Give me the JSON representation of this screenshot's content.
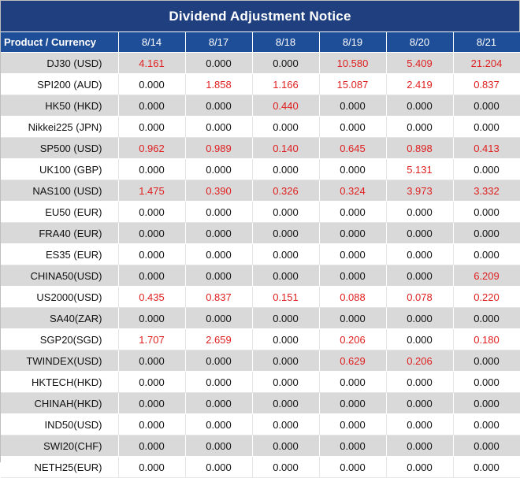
{
  "title": "Dividend Adjustment Notice",
  "header": {
    "product_label": "Product / Currency",
    "dates": [
      "8/14",
      "8/17",
      "8/18",
      "8/19",
      "8/20",
      "8/21"
    ]
  },
  "colors": {
    "title_bg": "#1f3f7f",
    "header_bg": "#1f4e99",
    "shade": "#d9d9d9",
    "nonzero": "#e02020"
  },
  "rows": [
    {
      "product": "DJ30 (USD)",
      "values": [
        "4.161",
        "0.000",
        "0.000",
        "10.580",
        "5.409",
        "21.204"
      ]
    },
    {
      "product": "SPI200 (AUD)",
      "values": [
        "0.000",
        "1.858",
        "1.166",
        "15.087",
        "2.419",
        "0.837"
      ]
    },
    {
      "product": "HK50 (HKD)",
      "values": [
        "0.000",
        "0.000",
        "0.440",
        "0.000",
        "0.000",
        "0.000"
      ]
    },
    {
      "product": "Nikkei225 (JPN)",
      "values": [
        "0.000",
        "0.000",
        "0.000",
        "0.000",
        "0.000",
        "0.000"
      ]
    },
    {
      "product": "SP500 (USD)",
      "values": [
        "0.962",
        "0.989",
        "0.140",
        "0.645",
        "0.898",
        "0.413"
      ]
    },
    {
      "product": "UK100 (GBP)",
      "values": [
        "0.000",
        "0.000",
        "0.000",
        "0.000",
        "5.131",
        "0.000"
      ]
    },
    {
      "product": "NAS100 (USD)",
      "values": [
        "1.475",
        "0.390",
        "0.326",
        "0.324",
        "3.973",
        "3.332"
      ]
    },
    {
      "product": "EU50 (EUR)",
      "values": [
        "0.000",
        "0.000",
        "0.000",
        "0.000",
        "0.000",
        "0.000"
      ]
    },
    {
      "product": "FRA40 (EUR)",
      "values": [
        "0.000",
        "0.000",
        "0.000",
        "0.000",
        "0.000",
        "0.000"
      ]
    },
    {
      "product": "ES35 (EUR)",
      "values": [
        "0.000",
        "0.000",
        "0.000",
        "0.000",
        "0.000",
        "0.000"
      ]
    },
    {
      "product": "CHINA50(USD)",
      "values": [
        "0.000",
        "0.000",
        "0.000",
        "0.000",
        "0.000",
        "6.209"
      ]
    },
    {
      "product": "US2000(USD)",
      "values": [
        "0.435",
        "0.837",
        "0.151",
        "0.088",
        "0.078",
        "0.220"
      ]
    },
    {
      "product": "SA40(ZAR)",
      "values": [
        "0.000",
        "0.000",
        "0.000",
        "0.000",
        "0.000",
        "0.000"
      ]
    },
    {
      "product": "SGP20(SGD)",
      "values": [
        "1.707",
        "2.659",
        "0.000",
        "0.206",
        "0.000",
        "0.180"
      ]
    },
    {
      "product": "TWINDEX(USD)",
      "values": [
        "0.000",
        "0.000",
        "0.000",
        "0.629",
        "0.206",
        "0.000"
      ]
    },
    {
      "product": "HKTECH(HKD)",
      "values": [
        "0.000",
        "0.000",
        "0.000",
        "0.000",
        "0.000",
        "0.000"
      ]
    },
    {
      "product": "CHINAH(HKD)",
      "values": [
        "0.000",
        "0.000",
        "0.000",
        "0.000",
        "0.000",
        "0.000"
      ]
    },
    {
      "product": "IND50(USD)",
      "values": [
        "0.000",
        "0.000",
        "0.000",
        "0.000",
        "0.000",
        "0.000"
      ]
    },
    {
      "product": "SWI20(CHF)",
      "values": [
        "0.000",
        "0.000",
        "0.000",
        "0.000",
        "0.000",
        "0.000"
      ]
    },
    {
      "product": "NETH25(EUR)",
      "values": [
        "0.000",
        "0.000",
        "0.000",
        "0.000",
        "0.000",
        "0.000"
      ]
    }
  ]
}
